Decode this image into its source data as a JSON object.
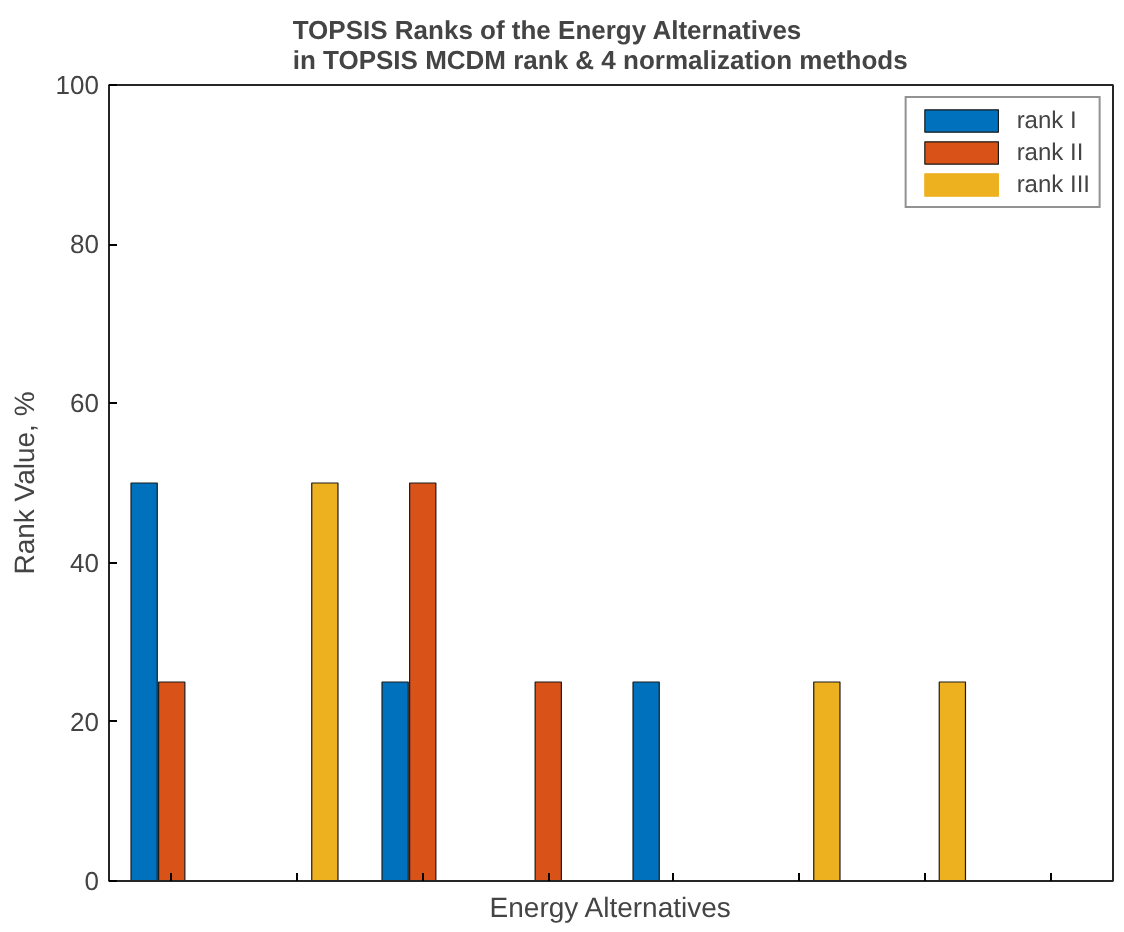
{
  "chart_data": {
    "type": "bar",
    "title": "TOPSIS Ranks of the Energy Alternatives\nin  TOPSIS MCDM rank   & 4 normalization methods",
    "xlabel": "Energy Alternatives",
    "ylabel": "Rank Value, %",
    "categories": [
      null,
      null,
      null,
      null,
      null,
      null,
      null,
      null
    ],
    "series": [
      {
        "name": "rank I",
        "color": "#0072bd",
        "values": [
          50,
          0,
          25,
          0,
          25,
          0,
          0,
          0
        ]
      },
      {
        "name": "rank II",
        "color": "#d95319",
        "values": [
          25,
          0,
          50,
          25,
          0,
          0,
          0,
          0
        ]
      },
      {
        "name": "rank III",
        "color": "#edb120",
        "values": [
          0,
          50,
          0,
          0,
          0,
          25,
          25,
          0
        ]
      }
    ],
    "ylim": [
      0,
      100
    ],
    "yticks": [
      0,
      20,
      40,
      60,
      80,
      100
    ],
    "grid": false,
    "legend": "top right",
    "tick_labels": "y"
  }
}
